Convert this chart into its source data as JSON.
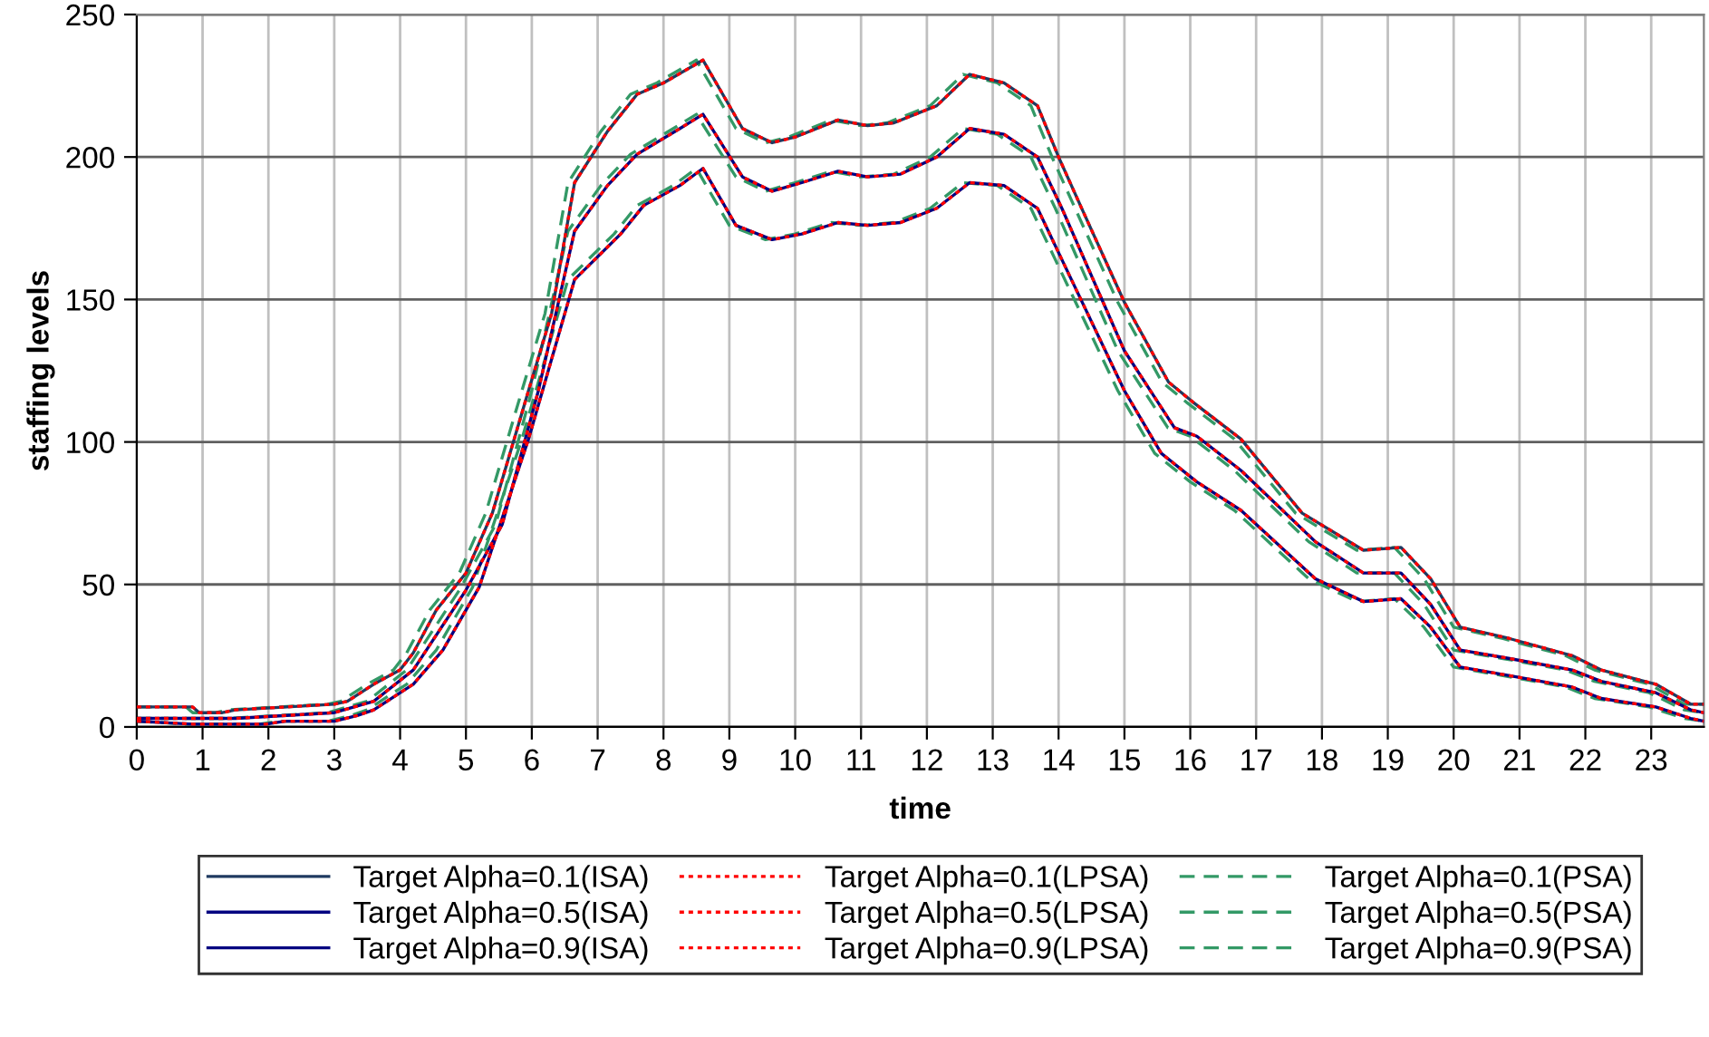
{
  "chart_data": {
    "type": "line",
    "xlabel": "time",
    "ylabel": "staffing levels",
    "xlim": [
      0,
      23.8
    ],
    "xticks": [
      0,
      1,
      2,
      3,
      4,
      5,
      6,
      7,
      8,
      9,
      10,
      11,
      12,
      13,
      14,
      15,
      16,
      17,
      18,
      19,
      20,
      21,
      22,
      23
    ],
    "ylim": [
      0,
      250
    ],
    "yticks": [
      0,
      50,
      100,
      150,
      200,
      250
    ],
    "grid": true,
    "legend": "bottom",
    "marker": "none",
    "series": [
      {
        "name": "Target Alpha=0.1(ISA)",
        "color": "#1f3a60",
        "line_style": "solid",
        "x": [
          0,
          0.85,
          0.95,
          1.3,
          1.5,
          3.0,
          3.2,
          3.6,
          4.0,
          4.2,
          4.55,
          5.0,
          5.4,
          5.95,
          6.3,
          6.65,
          7.15,
          7.6,
          8.0,
          8.6,
          9.2,
          9.65,
          10.0,
          10.65,
          11.1,
          11.5,
          12.15,
          12.65,
          13.17,
          13.68,
          14.0,
          14.37,
          15.0,
          15.67,
          16.04,
          16.77,
          17.7,
          18.63,
          19.2,
          19.65,
          20.1,
          20.85,
          21.8,
          22.24,
          23.07,
          23.6,
          23.8
        ],
        "values": [
          7,
          7,
          5,
          5,
          6,
          8,
          9,
          15,
          20,
          26,
          41,
          54,
          75,
          118,
          145,
          191,
          209,
          222,
          226,
          234,
          210,
          205,
          207,
          213,
          211,
          212,
          218,
          229,
          226,
          218,
          200,
          181,
          149,
          121,
          114,
          101,
          75,
          62,
          63,
          52,
          35,
          31,
          25,
          20,
          15,
          8,
          8
        ]
      },
      {
        "name": "Target Alpha=0.5(ISA)",
        "color": "#000080",
        "line_style": "solid",
        "x": [
          0,
          0.85,
          1.5,
          3.0,
          3.6,
          4.2,
          5.0,
          5.55,
          6.1,
          6.65,
          7.15,
          7.6,
          8.25,
          8.6,
          9.2,
          9.65,
          10.1,
          10.65,
          11.1,
          11.6,
          12.15,
          12.65,
          13.17,
          13.68,
          14.05,
          15.0,
          15.76,
          16.1,
          16.77,
          17.9,
          18.63,
          19.2,
          19.65,
          20.1,
          20.85,
          21.8,
          22.24,
          23.07,
          23.6,
          23.8
        ],
        "values": [
          3,
          3,
          3,
          5,
          9,
          20,
          48,
          71,
          118,
          174,
          190,
          201,
          210,
          215,
          193,
          188,
          191,
          195,
          193,
          194,
          200,
          210,
          208,
          200,
          182,
          132,
          105,
          102,
          90,
          65,
          54,
          54,
          43,
          27,
          24,
          20,
          16,
          12,
          6,
          5
        ]
      },
      {
        "name": "Target Alpha=0.9(ISA)",
        "color": "#000080",
        "line_style": "solid",
        "x": [
          0,
          0.85,
          1.96,
          2.25,
          3.0,
          3.35,
          3.6,
          4.2,
          4.65,
          5.2,
          5.95,
          6.65,
          7.35,
          7.7,
          8.25,
          8.6,
          9.1,
          9.65,
          10.1,
          10.65,
          11.1,
          11.6,
          12.15,
          12.65,
          13.17,
          13.68,
          14.05,
          15.0,
          15.56,
          16.1,
          16.77,
          17.9,
          18.63,
          19.2,
          19.65,
          20.1,
          20.85,
          21.8,
          22.24,
          23.07,
          23.6,
          23.8
        ],
        "values": [
          2,
          1,
          1,
          2,
          2,
          4,
          6,
          15,
          27,
          49,
          101,
          157,
          173,
          183,
          190,
          196,
          176,
          171,
          173,
          177,
          176,
          177,
          182,
          191,
          190,
          182,
          164,
          118,
          96,
          86,
          76,
          52,
          44,
          45,
          35,
          21,
          18,
          14,
          10,
          7,
          3,
          2
        ]
      },
      {
        "name": "Target Alpha=0.1(LPSA)",
        "color": "#ff0000",
        "line_style": "dotted",
        "x": [
          0,
          0.85,
          0.95,
          1.3,
          1.5,
          3.0,
          3.2,
          3.6,
          4.0,
          4.2,
          4.55,
          5.0,
          5.4,
          5.95,
          6.3,
          6.65,
          7.15,
          7.6,
          8.0,
          8.6,
          9.2,
          9.65,
          10.0,
          10.65,
          11.1,
          11.5,
          12.15,
          12.65,
          13.17,
          13.68,
          14.0,
          14.37,
          15.0,
          15.67,
          16.04,
          16.77,
          17.7,
          18.63,
          19.2,
          19.65,
          20.1,
          20.85,
          21.8,
          22.24,
          23.07,
          23.6,
          23.8
        ],
        "values": [
          7,
          7,
          5,
          5,
          6,
          8,
          9,
          15,
          20,
          26,
          41,
          54,
          75,
          118,
          145,
          191,
          209,
          222,
          226,
          234,
          210,
          205,
          207,
          213,
          211,
          212,
          218,
          229,
          226,
          218,
          200,
          181,
          149,
          121,
          114,
          101,
          75,
          62,
          63,
          52,
          35,
          31,
          25,
          20,
          15,
          8,
          8
        ]
      },
      {
        "name": "Target Alpha=0.5(LPSA)",
        "color": "#ff0000",
        "line_style": "dotted",
        "x": [
          0,
          0.85,
          1.5,
          3.0,
          3.6,
          4.2,
          5.0,
          5.55,
          6.1,
          6.65,
          7.15,
          7.6,
          8.25,
          8.6,
          9.2,
          9.65,
          10.1,
          10.65,
          11.1,
          11.6,
          12.15,
          12.65,
          13.17,
          13.68,
          14.05,
          15.0,
          15.76,
          16.1,
          16.77,
          17.9,
          18.63,
          19.2,
          19.65,
          20.1,
          20.85,
          21.8,
          22.24,
          23.07,
          23.6,
          23.8
        ],
        "values": [
          3,
          3,
          3,
          5,
          9,
          20,
          48,
          71,
          118,
          174,
          190,
          201,
          210,
          215,
          193,
          188,
          191,
          195,
          193,
          194,
          200,
          210,
          208,
          200,
          182,
          132,
          105,
          102,
          90,
          65,
          54,
          54,
          43,
          27,
          24,
          20,
          16,
          12,
          6,
          5
        ]
      },
      {
        "name": "Target Alpha=0.9(LPSA)",
        "color": "#ff0000",
        "line_style": "dotted",
        "x": [
          0,
          0.85,
          1.96,
          2.25,
          3.0,
          3.35,
          3.6,
          4.2,
          4.65,
          5.2,
          5.95,
          6.65,
          7.35,
          7.7,
          8.25,
          8.6,
          9.1,
          9.65,
          10.1,
          10.65,
          11.1,
          11.6,
          12.15,
          12.65,
          13.17,
          13.68,
          14.05,
          15.0,
          15.56,
          16.1,
          16.77,
          17.9,
          18.63,
          19.2,
          19.65,
          20.1,
          20.85,
          21.8,
          22.24,
          23.07,
          23.6,
          23.8
        ],
        "values": [
          2,
          1,
          1,
          2,
          2,
          4,
          6,
          15,
          27,
          49,
          101,
          157,
          173,
          183,
          190,
          196,
          176,
          171,
          173,
          177,
          176,
          177,
          182,
          191,
          190,
          182,
          164,
          118,
          96,
          86,
          76,
          52,
          44,
          45,
          35,
          21,
          18,
          14,
          10,
          7,
          3,
          2
        ]
      },
      {
        "name": "Target Alpha=0.1(PSA)",
        "color": "#339966",
        "line_style": "dashed",
        "x": [
          0,
          0.75,
          0.85,
          1.2,
          1.4,
          2.9,
          3.1,
          3.5,
          3.9,
          4.1,
          4.45,
          4.9,
          5.3,
          5.85,
          6.2,
          6.55,
          7.05,
          7.5,
          7.9,
          8.5,
          9.1,
          9.55,
          9.9,
          10.55,
          11.0,
          11.4,
          12.05,
          12.55,
          13.07,
          13.58,
          13.9,
          14.27,
          14.9,
          15.57,
          15.94,
          16.67,
          17.6,
          18.53,
          19.1,
          19.55,
          20.0,
          20.75,
          21.7,
          22.14,
          22.97,
          23.5,
          23.8
        ],
        "values": [
          7,
          7,
          5,
          5,
          6,
          8,
          9,
          15,
          20,
          26,
          41,
          54,
          75,
          118,
          145,
          191,
          209,
          222,
          226,
          234,
          210,
          205,
          207,
          213,
          211,
          212,
          218,
          229,
          226,
          218,
          200,
          181,
          149,
          121,
          114,
          101,
          75,
          62,
          63,
          52,
          35,
          31,
          25,
          20,
          15,
          8,
          8
        ]
      },
      {
        "name": "Target Alpha=0.5(PSA)",
        "color": "#339966",
        "line_style": "dashed",
        "x": [
          0,
          0.75,
          1.4,
          2.9,
          3.5,
          4.1,
          4.9,
          5.45,
          6.0,
          6.55,
          7.05,
          7.5,
          8.15,
          8.5,
          9.1,
          9.55,
          10.0,
          10.55,
          11.0,
          11.5,
          12.05,
          12.55,
          13.07,
          13.58,
          13.95,
          14.9,
          15.66,
          16.0,
          16.67,
          17.8,
          18.53,
          19.1,
          19.55,
          20.0,
          20.75,
          21.7,
          22.14,
          22.97,
          23.5,
          23.8
        ],
        "values": [
          3,
          3,
          3,
          5,
          9,
          20,
          48,
          71,
          118,
          174,
          190,
          201,
          210,
          215,
          193,
          188,
          191,
          195,
          193,
          194,
          200,
          210,
          208,
          200,
          182,
          132,
          105,
          102,
          90,
          65,
          54,
          54,
          43,
          27,
          24,
          20,
          16,
          12,
          6,
          5
        ]
      },
      {
        "name": "Target Alpha=0.9(PSA)",
        "color": "#339966",
        "line_style": "dashed",
        "x": [
          0,
          0.75,
          1.86,
          2.15,
          2.9,
          3.25,
          3.5,
          4.1,
          4.55,
          5.1,
          5.85,
          6.55,
          7.25,
          7.6,
          8.15,
          8.5,
          9.0,
          9.55,
          10.0,
          10.55,
          11.0,
          11.5,
          12.05,
          12.55,
          13.07,
          13.58,
          13.95,
          14.9,
          15.46,
          16.0,
          16.67,
          17.8,
          18.53,
          19.1,
          19.55,
          20.0,
          20.75,
          21.7,
          22.14,
          22.97,
          23.5,
          23.8
        ],
        "values": [
          2,
          1,
          1,
          2,
          2,
          4,
          6,
          15,
          27,
          49,
          101,
          157,
          173,
          183,
          190,
          196,
          176,
          171,
          173,
          177,
          176,
          177,
          182,
          191,
          190,
          182,
          164,
          118,
          96,
          86,
          76,
          52,
          44,
          45,
          35,
          21,
          18,
          14,
          10,
          7,
          3,
          2
        ]
      }
    ]
  }
}
